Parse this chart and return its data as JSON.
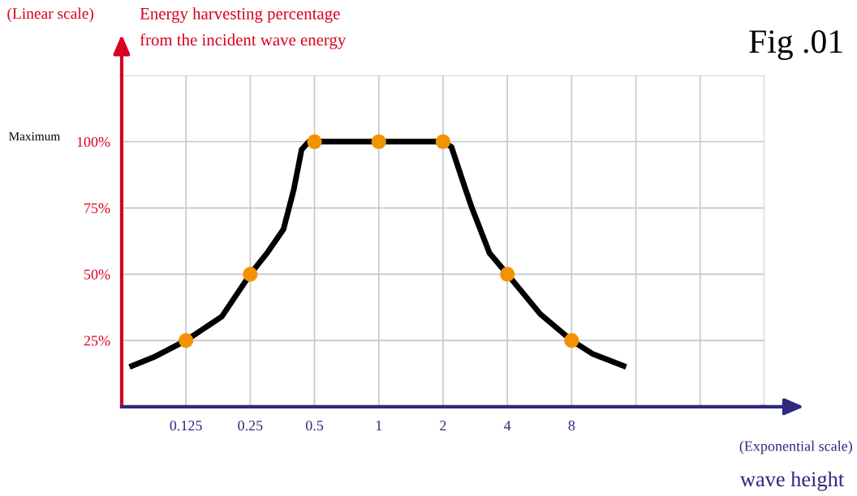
{
  "chart_data": {
    "type": "line",
    "title": "Fig .01",
    "xlabel": "wave height",
    "ylabel": "Energy harvesting percentage\nfrom the incident wave energy",
    "annotations": [
      "(Linear scale)",
      "(Exponential scale)",
      "Maximum"
    ],
    "log": "x",
    "grid": true,
    "xlim": [
      0.0625,
      64
    ],
    "xticks": [
      0.125,
      0.25,
      0.5,
      1,
      2,
      4,
      8,
      {
        "value": 16,
        "label": null
      },
      {
        "value": 32,
        "label": null
      },
      {
        "value": 64,
        "label": null
      }
    ],
    "ylim": [
      0,
      125
    ],
    "yticks": [
      {
        "value": 25,
        "label": "25%"
      },
      {
        "value": 50,
        "label": "50%"
      },
      {
        "value": 75,
        "label": "75%"
      },
      {
        "value": 100,
        "label": "100%"
      },
      {
        "value": 125,
        "label": null
      }
    ],
    "series": [
      {
        "color": "#000000",
        "marker": "none",
        "line_style": "solid",
        "x": [
          0.068,
          0.09,
          0.125,
          0.184,
          0.25,
          0.3,
          0.358,
          0.4,
          0.435,
          0.47,
          2,
          2.19,
          2.5,
          2.73,
          3.3,
          4,
          5.7,
          8,
          10,
          14.4
        ],
        "values": [
          15,
          19,
          25,
          34,
          50,
          58,
          67,
          82,
          97,
          100,
          100,
          98,
          84,
          75,
          58,
          50,
          35,
          25,
          20,
          15
        ]
      },
      {
        "type": "scatter",
        "color": "#f39200",
        "marker": "circle",
        "x": [
          0.125,
          0.25,
          0.5,
          1,
          2,
          4,
          8
        ],
        "values": [
          25,
          50,
          100,
          100,
          100,
          50,
          25
        ]
      }
    ]
  }
}
